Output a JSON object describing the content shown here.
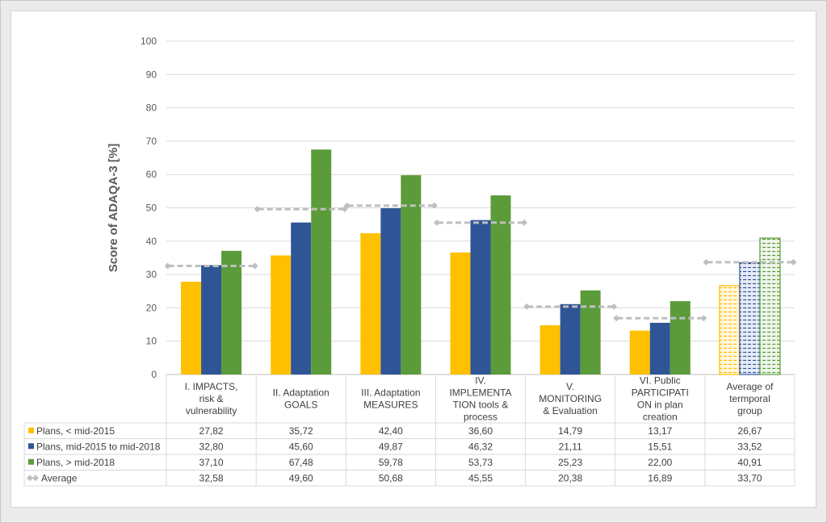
{
  "chart_data": {
    "type": "bar",
    "title": "",
    "ylabel": "Score of ADAQA-3   [%]",
    "ylim": [
      0,
      100
    ],
    "yticks": [
      "0",
      "10",
      "20",
      "30",
      "40",
      "50",
      "60",
      "70",
      "80",
      "90",
      "100"
    ],
    "grid": true,
    "legend": "data-table",
    "categories": [
      [
        "I. IMPACTS,",
        "risk &",
        "vulnerability"
      ],
      [
        "II. Adaptation",
        "GOALS"
      ],
      [
        "III. Adaptation",
        "MEASURES"
      ],
      [
        "IV.",
        "IMPLEMENTA",
        "TION tools &",
        "process"
      ],
      [
        "V.",
        "MONITORING",
        "& Evaluation"
      ],
      [
        "VI. Public",
        "PARTICIPATI",
        "ON in plan",
        "creation"
      ],
      [
        "Average of",
        "termporal",
        "group"
      ]
    ],
    "series": [
      {
        "name": "Plans, < mid-2015",
        "color": "#ffc000",
        "values": [
          27.82,
          35.72,
          42.4,
          36.6,
          14.79,
          13.17,
          26.67
        ],
        "labels": [
          "27,82",
          "35,72",
          "42,40",
          "36,60",
          "14,79",
          "13,17",
          "26,67"
        ]
      },
      {
        "name": "Plans, mid-2015 to mid-2018",
        "color": "#2f5597",
        "values": [
          32.8,
          45.6,
          49.87,
          46.32,
          21.11,
          15.51,
          33.52
        ],
        "labels": [
          "32,80",
          "45,60",
          "49,87",
          "46,32",
          "21,11",
          "15,51",
          "33,52"
        ]
      },
      {
        "name": "Plans, > mid-2018",
        "color": "#5b9b3a",
        "values": [
          37.1,
          67.48,
          59.78,
          53.73,
          25.23,
          22.0,
          40.91
        ],
        "labels": [
          "37,10",
          "67,48",
          "59,78",
          "53,73",
          "25,23",
          "22,00",
          "40,91"
        ]
      }
    ],
    "average": {
      "name": "Average",
      "color": "#bfbfbf",
      "values": [
        32.58,
        49.6,
        50.68,
        45.55,
        20.38,
        16.89,
        33.7
      ],
      "labels": [
        "32,58",
        "49,60",
        "50,68",
        "45,55",
        "20,38",
        "16,89",
        "33,70"
      ]
    }
  }
}
